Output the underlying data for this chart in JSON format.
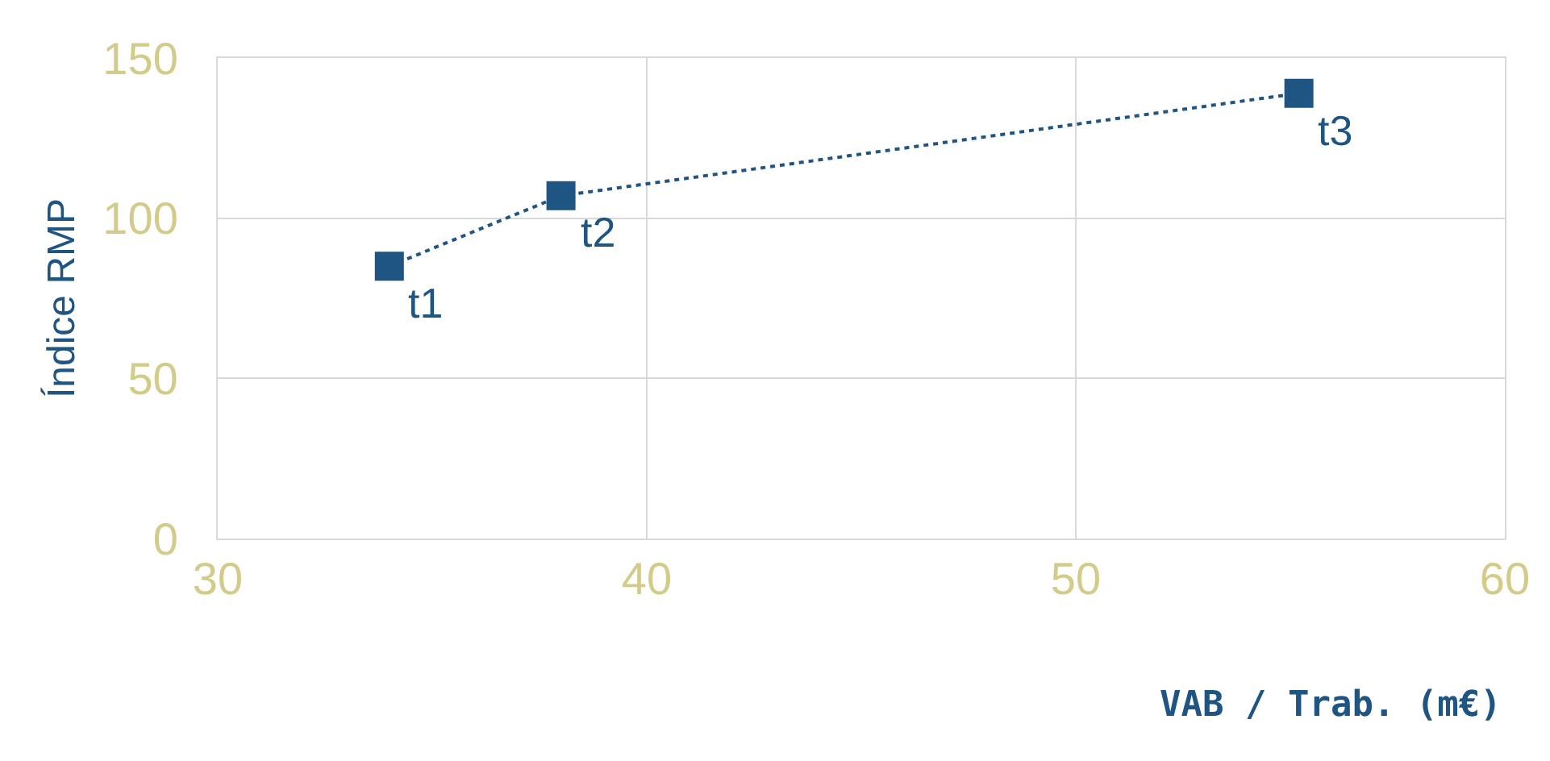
{
  "chart_data": {
    "type": "line",
    "xlabel": "VAB / Trab. (m€)",
    "ylabel": "Índice RMP",
    "x": [
      34,
      38,
      55.2
    ],
    "series": [
      {
        "color": "#1f5582",
        "values": [
          85,
          107,
          139
        ]
      }
    ],
    "annotations": [
      {
        "text": "t1",
        "x": 34,
        "y": 85
      },
      {
        "text": "t2",
        "x": 38,
        "y": 107
      },
      {
        "text": "t3",
        "x": 55.2,
        "y": 139
      }
    ],
    "xlim": [
      30,
      60
    ],
    "xticks": [
      30,
      40,
      50,
      60
    ],
    "ylim": [
      0,
      150
    ],
    "yticks": [
      0,
      50,
      100,
      150
    ],
    "grid": true,
    "marker": "square",
    "line_style": "dotted"
  }
}
